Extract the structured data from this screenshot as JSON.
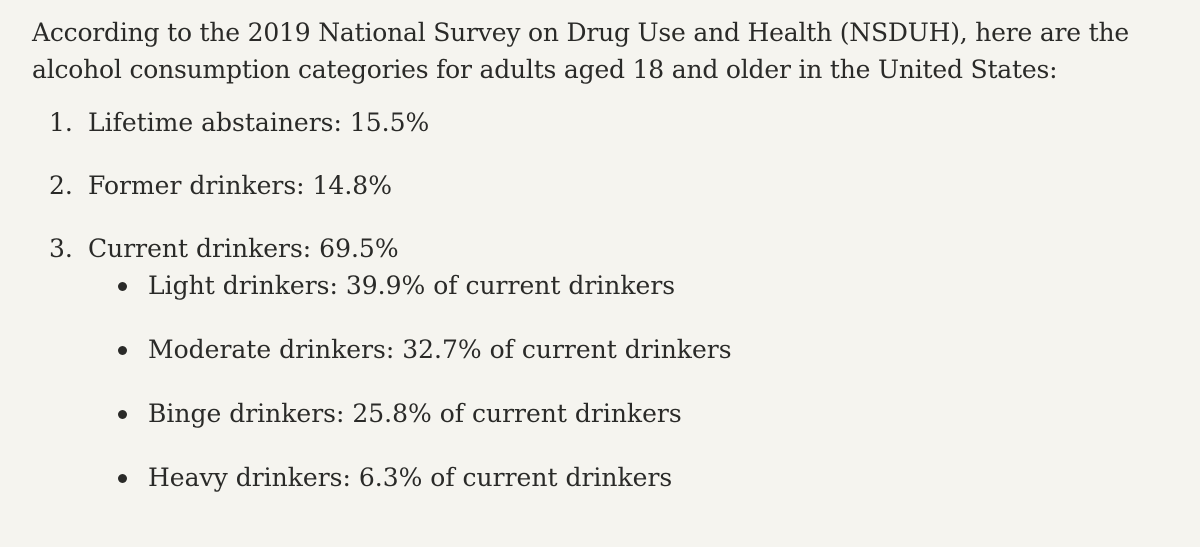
{
  "intro": "According to the 2019 National Survey on Drug Use and Health (NSDUH), here are the alcohol consumption categories for adults aged 18 and older in the United States:",
  "categories": [
    {
      "number": "1.",
      "text": "Lifetime abstainers: 15.5%"
    },
    {
      "number": "2.",
      "text": "Former drinkers: 14.8%"
    },
    {
      "number": "3.",
      "text": "Current drinkers: 69.5%"
    }
  ],
  "current_drinker_breakdown": [
    {
      "text": "Light drinkers: 39.9% of current drinkers"
    },
    {
      "text": "Moderate drinkers: 32.7% of current drinkers"
    },
    {
      "text": "Binge drinkers: 25.8% of current drinkers"
    },
    {
      "text": "Heavy drinkers: 6.3% of current drinkers"
    }
  ]
}
